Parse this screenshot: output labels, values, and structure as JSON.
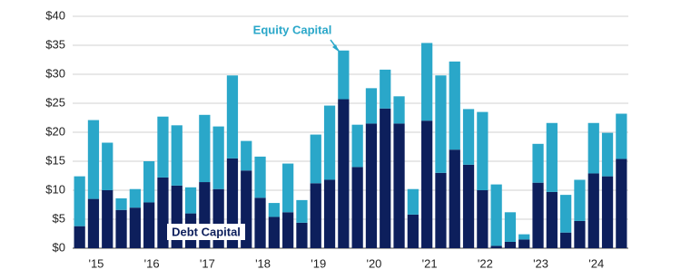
{
  "chart_data": {
    "type": "stacked_bar",
    "categories": [
      null,
      "'15",
      null,
      null,
      null,
      "'16",
      null,
      null,
      null,
      "'17",
      null,
      null,
      null,
      "'18",
      null,
      null,
      null,
      "'19",
      null,
      null,
      null,
      "'20",
      null,
      null,
      null,
      "'21",
      null,
      null,
      null,
      "'22",
      null,
      null,
      null,
      "'23",
      null,
      null,
      null,
      "'24",
      null,
      null
    ],
    "series": [
      {
        "name": "Debt Capital",
        "color": "#0d1f5c",
        "values": [
          3.8,
          8.5,
          10,
          6.6,
          7,
          7.9,
          12.2,
          10.8,
          6,
          11.4,
          10.2,
          15.5,
          13.4,
          8.7,
          5.4,
          6.2,
          4.4,
          11.2,
          11.8,
          25.7,
          14,
          21.5,
          24.1,
          21.5,
          5.8,
          22,
          13,
          17,
          14.4,
          10,
          0.4,
          1.1,
          1.5,
          11.3,
          9.7,
          2.7,
          4.7,
          12.9,
          12.4,
          15.4
        ]
      },
      {
        "name": "Equity Capital",
        "color": "#2aa7c9",
        "values": [
          8.6,
          13.6,
          8.2,
          2,
          3.2,
          7.1,
          10.5,
          10.4,
          4.5,
          11.6,
          10.8,
          14.3,
          5.1,
          7.1,
          2.4,
          8.4,
          3.9,
          8.4,
          12.8,
          8.4,
          7.3,
          6.1,
          6.7,
          4.7,
          4.4,
          13.4,
          16.8,
          15.2,
          9.6,
          13.5,
          10.6,
          5.1,
          0.9,
          6.7,
          11.9,
          6.5,
          7.1,
          8.7,
          7.5,
          7.8
        ]
      }
    ],
    "ylim": [
      0,
      40
    ],
    "yticks": [
      {
        "value": 0,
        "label": "$0"
      },
      {
        "value": 5,
        "label": "$5"
      },
      {
        "value": 10,
        "label": "$10"
      },
      {
        "value": 15,
        "label": "$15"
      },
      {
        "value": 20,
        "label": "$20"
      },
      {
        "value": 25,
        "label": "$25"
      },
      {
        "value": 30,
        "label": "$30"
      },
      {
        "value": 35,
        "label": "$35"
      },
      {
        "value": 40,
        "label": "$40"
      }
    ],
    "grid": true
  }
}
